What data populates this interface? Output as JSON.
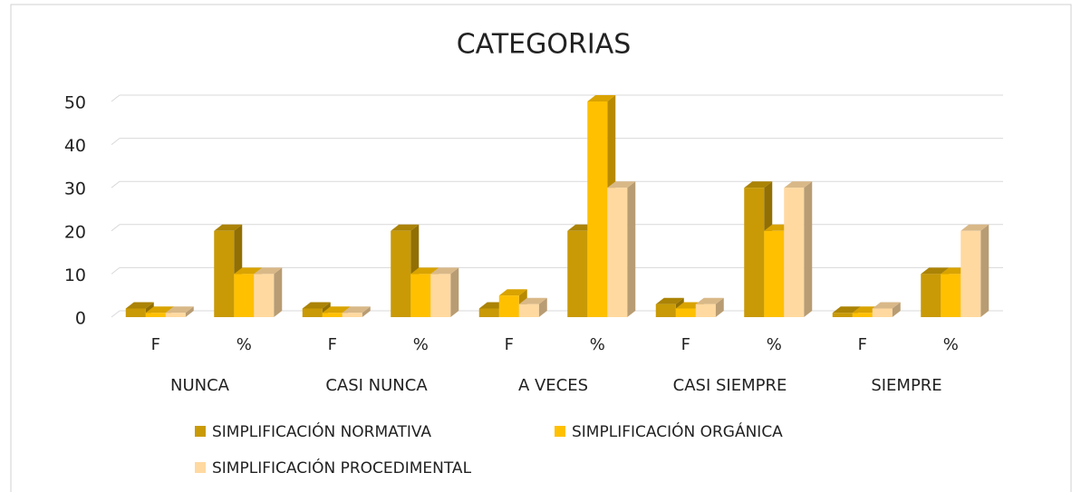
{
  "chart_data": {
    "type": "bar3d",
    "title": "CATEGORIAS",
    "categories": [
      "F",
      "%",
      "F",
      "%",
      "F",
      "%",
      "F",
      "%",
      "F",
      "%"
    ],
    "category_groups": [
      "NUNCA",
      "CASI NUNCA",
      "A VECES",
      "CASI SIEMPRE",
      "SIEMPRE"
    ],
    "series": [
      {
        "name": "SIMPLIFICACIÓN NORMATIVA",
        "color": "#c99a06",
        "values": [
          2,
          20,
          2,
          20,
          2,
          20,
          3,
          30,
          1,
          10
        ]
      },
      {
        "name": "SIMPLIFICACIÓN ORGÁNICA",
        "color": "#ffc000",
        "values": [
          1,
          10,
          1,
          10,
          5,
          50,
          2,
          20,
          1,
          10
        ]
      },
      {
        "name": "SIMPLIFICACIÓN PROCEDIMENTAL",
        "color": "#ffd9a0",
        "values": [
          1,
          10,
          1,
          10,
          3,
          30,
          3,
          30,
          2,
          20
        ]
      }
    ],
    "ylim": [
      0,
      50
    ],
    "yticks": [
      0,
      10,
      20,
      30,
      40,
      50
    ],
    "grid": true
  }
}
